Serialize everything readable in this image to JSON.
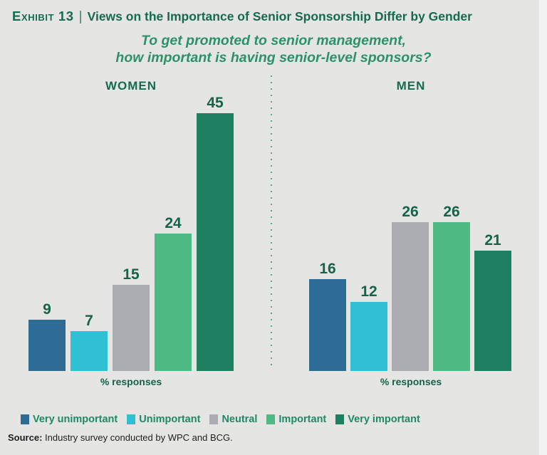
{
  "header": {
    "exhibit_label": "Exhibit 13",
    "separator": "|",
    "title": "Views on the Importance of Senior Sponsorship Differ by Gender"
  },
  "subtitle": {
    "line1": "To get promoted to senior management,",
    "line2": "how important is having senior-level sponsors?"
  },
  "chart_data": {
    "type": "bar",
    "categories": [
      "Very unimportant",
      "Unimportant",
      "Neutral",
      "Important",
      "Very important"
    ],
    "series": [
      {
        "name": "WOMEN",
        "values": [
          9,
          7,
          15,
          24,
          45
        ]
      },
      {
        "name": "MEN",
        "values": [
          16,
          12,
          26,
          26,
          21
        ]
      }
    ],
    "colors": [
      "#2d6c94",
      "#2fc0d4",
      "#abadb3",
      "#4cba82",
      "#1d8161"
    ],
    "title": "To get promoted to senior management, how important is having senior-level sponsors?",
    "xlabel": "% responses",
    "ylabel": "",
    "ylim": [
      0,
      48
    ],
    "grid": false,
    "value_labels": true,
    "legend_position": "bottom"
  },
  "legend": [
    {
      "label": "Very unimportant",
      "color": "#2d6c94"
    },
    {
      "label": "Unimportant",
      "color": "#2fc0d4"
    },
    {
      "label": "Neutral",
      "color": "#abadb3"
    },
    {
      "label": "Important",
      "color": "#4cba82"
    },
    {
      "label": "Very important",
      "color": "#1d8161"
    }
  ],
  "source": {
    "prefix": "Source:",
    "text": " Industry survey conducted by WPC and BCG."
  },
  "theme": {
    "background": "#e5e6e4",
    "title_green": "#156a50",
    "subtitle_green": "#2d9168",
    "label_green": "#15634a",
    "legend_green": "#1d8a66",
    "divider_green": "#57a88b"
  }
}
